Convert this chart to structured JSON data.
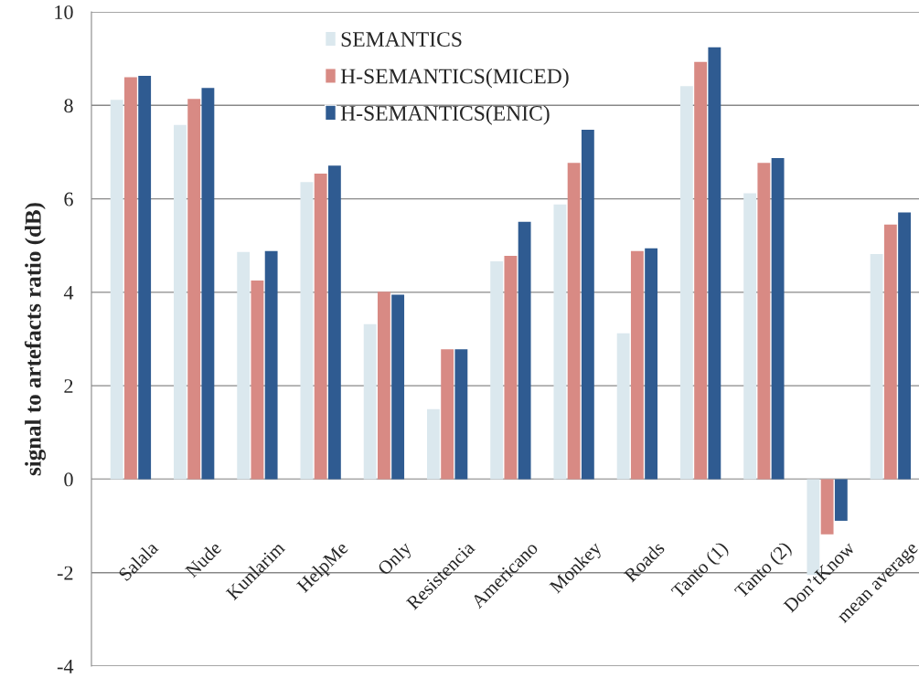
{
  "chart_data": {
    "type": "bar",
    "ylabel": "signal to artefacts ratio (dB)",
    "categories": [
      "Salala",
      "Nude",
      "Kunlarim",
      "HelpMe",
      "Only",
      "Resistencia",
      "Americano",
      "Monkey",
      "Roads",
      "Tanto (1)",
      "Tanto (2)",
      "Don’tKnow",
      "mean average"
    ],
    "series": [
      {
        "name": "SEMANTICS",
        "color": "#dbe8ee",
        "values": [
          8.12,
          7.58,
          4.86,
          6.36,
          3.32,
          1.5,
          4.66,
          5.88,
          3.12,
          8.41,
          6.12,
          -2.05,
          4.82
        ]
      },
      {
        "name": "H-SEMANTICS(MICED)",
        "color": "#d88a84",
        "values": [
          8.6,
          8.14,
          4.25,
          6.54,
          4.01,
          2.78,
          4.78,
          6.77,
          4.88,
          8.93,
          6.77,
          -1.18,
          5.45
        ]
      },
      {
        "name": "H-SEMANTICS(ENIC)",
        "color": "#2f5b91",
        "values": [
          8.63,
          8.37,
          4.88,
          6.71,
          3.95,
          2.78,
          5.51,
          7.48,
          4.94,
          9.24,
          6.87,
          -0.89,
          5.71
        ]
      }
    ],
    "ylim": [
      -4,
      10
    ],
    "yticks": [
      {
        "value": -4,
        "label": "-4"
      },
      {
        "value": -2,
        "label": "-2"
      },
      0,
      2,
      4,
      6,
      8,
      10
    ],
    "grid": "y",
    "legend": "top"
  }
}
